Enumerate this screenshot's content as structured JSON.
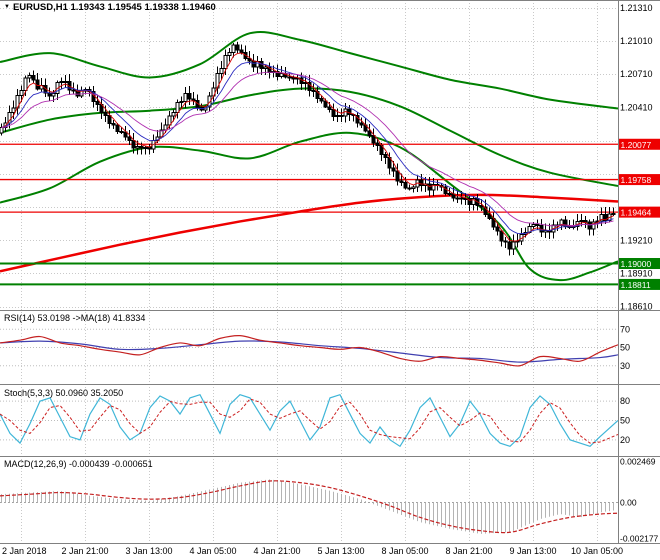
{
  "icons": {
    "dropdown": "▼"
  },
  "colors": {
    "grid": "#c9c9c9",
    "candle_up": "#ffffff",
    "candle_down": "#000000",
    "bollinger": "#008000",
    "sma": "#ee0000",
    "level_red": "#ee0000",
    "level_green": "#008000",
    "rsi_line": "#c42020",
    "rsi_ma": "#4040b0",
    "stoch_k": "#3fb6d8",
    "stoch_d": "#cc2020",
    "macd_hist": "#b4b4b4",
    "macd_signal": "#c42020",
    "ema_fast": "#d40000",
    "ema_mid": "#2b2bc0",
    "ema_slow": "#b030b0"
  },
  "chart_data": {
    "type": "candlestick",
    "main": {
      "title": "EURUSD,H1 1.19343 1.19545 1.19338 1.19460",
      "symbol": "EURUSD",
      "timeframe": "H1",
      "ohlc": {
        "open": "1.19343",
        "high": "1.19545",
        "low": "1.19338",
        "close": "1.19460"
      },
      "ylim": [
        1.1858,
        1.2138
      ],
      "first_open": 1.2018,
      "closes": [
        1.2022,
        1.2028,
        1.2035,
        1.2042,
        1.205,
        1.2058,
        1.2066,
        1.2071,
        1.2065,
        1.2058,
        1.206,
        1.2055,
        1.205,
        1.2055,
        1.2062,
        1.2066,
        1.2063,
        1.2058,
        1.2055,
        1.2052,
        1.2055,
        1.2058,
        1.2054,
        1.2048,
        1.2042,
        1.2038,
        1.2032,
        1.2028,
        1.2024,
        1.202,
        1.2018,
        1.2015,
        1.201,
        1.2006,
        1.2004,
        1.2006,
        1.2003,
        1.2005,
        1.201,
        1.2015,
        1.202,
        1.2026,
        1.2032,
        1.2038,
        1.2044,
        1.2048,
        1.2052,
        1.205,
        1.2046,
        1.2042,
        1.2038,
        1.2042,
        1.205,
        1.206,
        1.207,
        1.2078,
        1.2086,
        1.2092,
        1.2096,
        1.2094,
        1.209,
        1.2086,
        1.2082,
        1.2079,
        1.2081,
        1.2078,
        1.2076,
        1.2074,
        1.2072,
        1.207,
        1.2071,
        1.2069,
        1.2067,
        1.2068,
        1.2066,
        1.2064,
        1.2062,
        1.2058,
        1.2054,
        1.205,
        1.2046,
        1.2042,
        1.2038,
        1.2034,
        1.2032,
        1.2035,
        1.2038,
        1.2036,
        1.2032,
        1.2028,
        1.2024,
        1.202,
        1.2015,
        1.201,
        1.2005,
        1.2,
        1.1994,
        1.1988,
        1.1982,
        1.1976,
        1.1972,
        1.1969,
        1.1967,
        1.197,
        1.1974,
        1.1972,
        1.197,
        1.1968,
        1.197,
        1.1972,
        1.1968,
        1.1964,
        1.1962,
        1.196,
        1.1958,
        1.196,
        1.1957,
        1.1955,
        1.1957,
        1.1954,
        1.195,
        1.1945,
        1.194,
        1.1934,
        1.1928,
        1.1922,
        1.1918,
        1.1915,
        1.1918,
        1.1922,
        1.1925,
        1.1929,
        1.1933,
        1.1936,
        1.1933,
        1.193,
        1.1928,
        1.193,
        1.1933,
        1.1936,
        1.1938,
        1.1935,
        1.1932,
        1.1934,
        1.1937,
        1.194,
        1.1936,
        1.1933,
        1.1936,
        1.194,
        1.1943,
        1.194,
        1.1944,
        1.1946
      ],
      "bollinger": {
        "upper": [
          [
            0,
            1.2082
          ],
          [
            50,
            1.209
          ],
          [
            100,
            1.2078
          ],
          [
            150,
            1.2068
          ],
          [
            200,
            1.208
          ],
          [
            250,
            1.2108
          ],
          [
            300,
            1.2102
          ],
          [
            350,
            1.209
          ],
          [
            400,
            1.2078
          ],
          [
            450,
            1.2066
          ],
          [
            500,
            1.2058
          ],
          [
            550,
            1.2048
          ],
          [
            618,
            1.204
          ]
        ],
        "middle": [
          [
            0,
            1.2018
          ],
          [
            50,
            1.203
          ],
          [
            100,
            1.2036
          ],
          [
            150,
            1.2038
          ],
          [
            200,
            1.2042
          ],
          [
            250,
            1.2052
          ],
          [
            300,
            1.2058
          ],
          [
            350,
            1.2055
          ],
          [
            400,
            1.2042
          ],
          [
            450,
            1.202
          ],
          [
            500,
            1.1998
          ],
          [
            550,
            1.1982
          ],
          [
            618,
            1.197
          ]
        ],
        "lower": [
          [
            0,
            1.1955
          ],
          [
            50,
            1.1968
          ],
          [
            100,
            1.1992
          ],
          [
            150,
            1.2005
          ],
          [
            200,
            1.2002
          ],
          [
            250,
            1.1995
          ],
          [
            300,
            1.201
          ],
          [
            350,
            1.2018
          ],
          [
            400,
            1.2005
          ],
          [
            450,
            1.1972
          ],
          [
            500,
            1.1935
          ],
          [
            530,
            1.1895
          ],
          [
            560,
            1.1885
          ],
          [
            590,
            1.1892
          ],
          [
            618,
            1.1902
          ]
        ]
      },
      "sma_red": [
        [
          0,
          1.1893
        ],
        [
          60,
          1.1905
        ],
        [
          120,
          1.1917
        ],
        [
          180,
          1.1928
        ],
        [
          240,
          1.1938
        ],
        [
          300,
          1.1947
        ],
        [
          360,
          1.1955
        ],
        [
          420,
          1.196
        ],
        [
          480,
          1.1962
        ],
        [
          540,
          1.196
        ],
        [
          618,
          1.1956
        ]
      ],
      "price_ticks": [
        {
          "label": "1.21310",
          "p": 1.2131
        },
        {
          "label": "1.21010",
          "p": 1.2101
        },
        {
          "label": "1.20710",
          "p": 1.2071
        },
        {
          "label": "1.20410",
          "p": 1.2041
        },
        {
          "label": "1.19210",
          "p": 1.1921
        },
        {
          "label": "1.18910",
          "p": 1.1891
        },
        {
          "label": "1.18610",
          "p": 1.1861
        }
      ],
      "levels": [
        {
          "label": "1.20077",
          "p": 1.20077,
          "color": "#ee0000"
        },
        {
          "label": "1.19758",
          "p": 1.19758,
          "color": "#ee0000"
        },
        {
          "label": "1.19464",
          "p": 1.19464,
          "color": "#ee0000"
        },
        {
          "label": "1.19000",
          "p": 1.19,
          "color": "#008000"
        },
        {
          "label": "1.18811",
          "p": 1.18811,
          "color": "#008000"
        }
      ]
    },
    "rsi": {
      "label": "RSI(14) 53.0198 ->MA(18) 41.8334",
      "ylim": [
        10,
        90
      ],
      "ticks": [
        70,
        50,
        30
      ],
      "line": [
        [
          0,
          55
        ],
        [
          20,
          58
        ],
        [
          40,
          62
        ],
        [
          60,
          55
        ],
        [
          80,
          52
        ],
        [
          100,
          48
        ],
        [
          120,
          45
        ],
        [
          140,
          42
        ],
        [
          160,
          50
        ],
        [
          180,
          55
        ],
        [
          200,
          52
        ],
        [
          220,
          60
        ],
        [
          240,
          63
        ],
        [
          260,
          58
        ],
        [
          280,
          55
        ],
        [
          300,
          52
        ],
        [
          320,
          50
        ],
        [
          340,
          48
        ],
        [
          360,
          50
        ],
        [
          380,
          45
        ],
        [
          400,
          38
        ],
        [
          420,
          35
        ],
        [
          440,
          40
        ],
        [
          460,
          38
        ],
        [
          480,
          36
        ],
        [
          500,
          33
        ],
        [
          520,
          30
        ],
        [
          540,
          40
        ],
        [
          560,
          38
        ],
        [
          580,
          35
        ],
        [
          600,
          45
        ],
        [
          618,
          53
        ]
      ],
      "ma": [
        [
          0,
          55
        ],
        [
          40,
          57
        ],
        [
          80,
          54
        ],
        [
          120,
          48
        ],
        [
          160,
          49
        ],
        [
          200,
          53
        ],
        [
          240,
          57
        ],
        [
          280,
          56
        ],
        [
          320,
          52
        ],
        [
          360,
          49
        ],
        [
          400,
          44
        ],
        [
          440,
          39
        ],
        [
          480,
          38
        ],
        [
          520,
          34
        ],
        [
          560,
          37
        ],
        [
          600,
          39
        ],
        [
          618,
          42
        ]
      ]
    },
    "stoch": {
      "label": "Stoch(5,3,3) 50.0960 35.2050",
      "ylim": [
        -5,
        105
      ],
      "ticks": [
        80,
        50,
        20
      ],
      "k": [
        [
          0,
          60
        ],
        [
          10,
          30
        ],
        [
          20,
          15
        ],
        [
          30,
          45
        ],
        [
          40,
          80
        ],
        [
          50,
          85
        ],
        [
          60,
          55
        ],
        [
          70,
          25
        ],
        [
          80,
          20
        ],
        [
          90,
          60
        ],
        [
          100,
          85
        ],
        [
          110,
          75
        ],
        [
          120,
          40
        ],
        [
          130,
          20
        ],
        [
          140,
          30
        ],
        [
          150,
          70
        ],
        [
          160,
          88
        ],
        [
          170,
          80
        ],
        [
          180,
          60
        ],
        [
          190,
          85
        ],
        [
          200,
          90
        ],
        [
          210,
          60
        ],
        [
          220,
          30
        ],
        [
          230,
          75
        ],
        [
          240,
          90
        ],
        [
          250,
          85
        ],
        [
          260,
          60
        ],
        [
          270,
          35
        ],
        [
          280,
          65
        ],
        [
          290,
          80
        ],
        [
          300,
          50
        ],
        [
          310,
          20
        ],
        [
          320,
          40
        ],
        [
          330,
          85
        ],
        [
          340,
          90
        ],
        [
          350,
          60
        ],
        [
          360,
          30
        ],
        [
          370,
          15
        ],
        [
          380,
          40
        ],
        [
          390,
          20
        ],
        [
          400,
          10
        ],
        [
          410,
          35
        ],
        [
          420,
          70
        ],
        [
          430,
          85
        ],
        [
          440,
          55
        ],
        [
          450,
          25
        ],
        [
          460,
          45
        ],
        [
          470,
          80
        ],
        [
          480,
          60
        ],
        [
          490,
          30
        ],
        [
          500,
          15
        ],
        [
          510,
          10
        ],
        [
          520,
          25
        ],
        [
          530,
          70
        ],
        [
          540,
          88
        ],
        [
          550,
          75
        ],
        [
          560,
          45
        ],
        [
          570,
          20
        ],
        [
          580,
          15
        ],
        [
          590,
          10
        ],
        [
          600,
          25
        ],
        [
          618,
          50
        ]
      ]
    },
    "macd": {
      "label": "MACD(12,26,9) -0.000439 -0.000651",
      "ylim": [
        -0.00245,
        0.00275
      ],
      "ticks": [
        {
          "label": "0.002469",
          "v": 0.002469
        },
        {
          "label": "0.00",
          "v": 0
        },
        {
          "label": "-0.002177",
          "v": -0.002177
        }
      ],
      "main": [
        [
          0,
          0.0005
        ],
        [
          30,
          0.0006
        ],
        [
          60,
          0.0007
        ],
        [
          90,
          0.0004
        ],
        [
          120,
          0.0002
        ],
        [
          150,
          0.0001
        ],
        [
          180,
          0.0004
        ],
        [
          210,
          0.0008
        ],
        [
          240,
          0.0012
        ],
        [
          270,
          0.0014
        ],
        [
          300,
          0.0011
        ],
        [
          330,
          0.0007
        ],
        [
          360,
          0.0002
        ],
        [
          390,
          -0.0005
        ],
        [
          420,
          -0.0012
        ],
        [
          450,
          -0.0016
        ],
        [
          480,
          -0.0019
        ],
        [
          510,
          -0.0018
        ],
        [
          540,
          -0.001
        ],
        [
          560,
          -0.0007
        ],
        [
          580,
          -0.0009
        ],
        [
          600,
          -0.0006
        ],
        [
          618,
          -0.00044
        ]
      ],
      "signal": [
        [
          0,
          0.0004
        ],
        [
          30,
          0.0005
        ],
        [
          60,
          0.0006
        ],
        [
          90,
          0.0005
        ],
        [
          120,
          0.0003
        ],
        [
          150,
          0.0002
        ],
        [
          180,
          0.0003
        ],
        [
          210,
          0.0006
        ],
        [
          240,
          0.001
        ],
        [
          270,
          0.0013
        ],
        [
          300,
          0.0012
        ],
        [
          330,
          0.0009
        ],
        [
          360,
          0.0004
        ],
        [
          390,
          -0.0002
        ],
        [
          420,
          -0.0009
        ],
        [
          450,
          -0.0014
        ],
        [
          480,
          -0.0017
        ],
        [
          510,
          -0.0018
        ],
        [
          540,
          -0.0013
        ],
        [
          570,
          -0.0009
        ],
        [
          600,
          -0.0007
        ],
        [
          618,
          -0.00065
        ]
      ]
    },
    "x_axis": {
      "grid_x": [
        21,
        85,
        149,
        213,
        277,
        341,
        405,
        469,
        533,
        597
      ],
      "labels": [
        "2 Jan 2018",
        "2 Jan 21:00",
        "3 Jan 13:00",
        "4 Jan 05:00",
        "4 Jan 21:00",
        "5 Jan 13:00",
        "8 Jan 05:00",
        "8 Jan 21:00",
        "9 Jan 13:00",
        "10 Jan 05:00"
      ]
    }
  }
}
